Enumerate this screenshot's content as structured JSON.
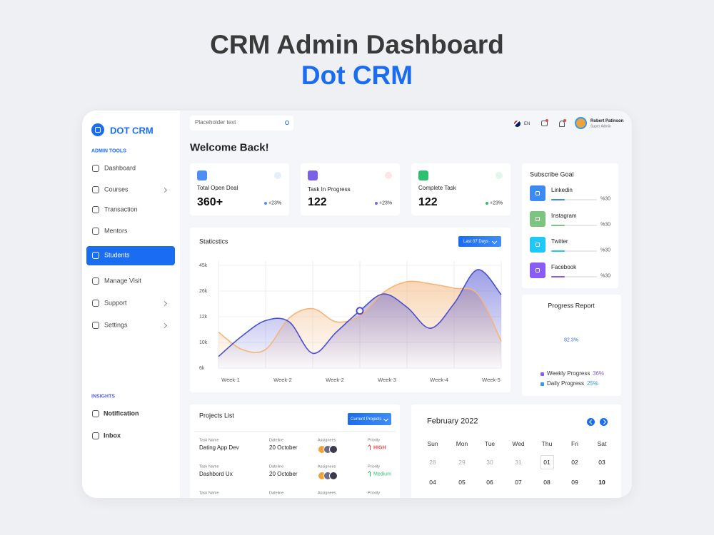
{
  "header": {
    "title": "CRM Admin Dashboard",
    "subtitle": "Dot CRM"
  },
  "sidebar": {
    "logo": "DOT CRM",
    "admin_label": "ADMIN TOOLS",
    "menu": [
      "Dashboard",
      "Courses",
      "Transaction",
      "Mentors",
      "Students",
      "Manage Visit",
      "Support",
      "Settings"
    ],
    "insights_label": "INSIGHTS",
    "insights": [
      "Notification",
      "Inbox"
    ]
  },
  "topbar": {
    "search": "Placeholder text",
    "language": "EN",
    "user_name": "Robert Patinson",
    "user_role": "Super Admin"
  },
  "welcome": "Welcome Back!",
  "stats": [
    {
      "label": "Total Open Deal",
      "value": "360+",
      "change": "+23%"
    },
    {
      "label": "Task In Progress",
      "value": "122",
      "change": "+23%"
    },
    {
      "label": "Complete Task",
      "value": "122",
      "change": "+23%"
    }
  ],
  "statistics": {
    "type": "line",
    "title": "Staticstics",
    "filter": "Last 07 Days",
    "categories": [
      "Week-1",
      "Week-2",
      "Week-2",
      "Week-3",
      "Week-4",
      "Week-5"
    ],
    "ylim": [
      6000,
      45000
    ],
    "yticks": [
      {
        "value": 45000,
        "label": "45k"
      },
      {
        "value": 26000,
        "label": "26k"
      },
      {
        "value": 12000,
        "label": "12k"
      },
      {
        "value": 10000,
        "label": "10k"
      },
      {
        "value": 6000,
        "label": "6k"
      }
    ],
    "grid": true,
    "series": [
      {
        "color": "#f3b57a",
        "values": [
          10800,
          8900,
          8900,
          11900,
          16400,
          11600,
          12400,
          25200,
          32900,
          31300,
          28100,
          24400,
          10100
        ]
      },
      {
        "color": "#4c4fd0",
        "values": [
          7800,
          10500,
          11700,
          11600,
          8300,
          10800,
          15200,
          24400,
          17200,
          11100,
          19200,
          41800,
          24000
        ]
      }
    ]
  },
  "subscribe": {
    "title": "Subscribe Goal",
    "items": [
      {
        "name": "Linkedin",
        "value": 30,
        "value_label": "%30",
        "color": "#3d8bf2"
      },
      {
        "name": "Instagram",
        "value": 30,
        "value_label": "%30",
        "color": "#7cc47f"
      },
      {
        "name": "Twitter",
        "value": 30,
        "value_label": "%30",
        "color": "#21c8f6"
      },
      {
        "name": "Facebook",
        "value": 30,
        "value_label": "%30",
        "color": "#8a5cf6"
      }
    ]
  },
  "progress": {
    "title": "Progress Report",
    "center_label": "82.3%",
    "items": [
      {
        "name": "Weekly Progress",
        "value": 36,
        "value_label": "36%",
        "color": "#8a5cf6"
      },
      {
        "name": "Daily Progress",
        "value": 25,
        "value_label": "25%",
        "color": "#2f9bf5"
      }
    ]
  },
  "projects": {
    "title": "Projects List",
    "filter": "Current Projects",
    "column_labels": [
      "Task Name",
      "Dateline",
      "Assignees",
      "Priority"
    ],
    "rows": [
      {
        "task": "Dating App Dev",
        "dateline": "20 October",
        "priority": "HIGH"
      },
      {
        "task": "Dashbord Ux",
        "dateline": "20 October",
        "priority": "Medium"
      }
    ]
  },
  "calendar": {
    "title": "February 2022",
    "weekdays": [
      "Sun",
      "Mon",
      "Tue",
      "Wed",
      "Thu",
      "Fri",
      "Sat"
    ],
    "weeks": [
      [
        "28",
        "29",
        "30",
        "31",
        "01",
        "02",
        "03"
      ],
      [
        "04",
        "05",
        "06",
        "07",
        "08",
        "09",
        "10"
      ]
    ]
  }
}
